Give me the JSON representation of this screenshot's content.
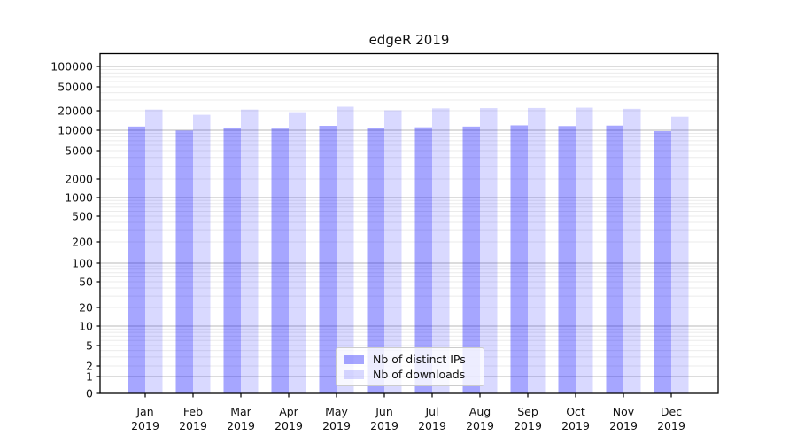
{
  "chart_data": {
    "type": "bar",
    "title": "edgeR 2019",
    "x_categories": [
      {
        "label": "Jan",
        "sublabel": "2019"
      },
      {
        "label": "Feb",
        "sublabel": "2019"
      },
      {
        "label": "Mar",
        "sublabel": "2019"
      },
      {
        "label": "Apr",
        "sublabel": "2019"
      },
      {
        "label": "May",
        "sublabel": "2019"
      },
      {
        "label": "Jun",
        "sublabel": "2019"
      },
      {
        "label": "Jul",
        "sublabel": "2019"
      },
      {
        "label": "Aug",
        "sublabel": "2019"
      },
      {
        "label": "Sep",
        "sublabel": "2019"
      },
      {
        "label": "Oct",
        "sublabel": "2019"
      },
      {
        "label": "Nov",
        "sublabel": "2019"
      },
      {
        "label": "Dec",
        "sublabel": "2019"
      }
    ],
    "series": [
      {
        "name": "Nb of distinct IPs",
        "color": "rgba(0,0,255,0.35)",
        "values": [
          11400,
          9900,
          11000,
          10600,
          11700,
          10700,
          11100,
          11400,
          11900,
          11600,
          11800,
          9700
        ]
      },
      {
        "name": "Nb of downloads",
        "color": "rgba(0,0,255,0.15)",
        "values": [
          20900,
          17300,
          20900,
          19000,
          23300,
          20300,
          21900,
          22100,
          22200,
          22500,
          21500,
          16200
        ]
      }
    ],
    "y_axis": {
      "scale": "symlog",
      "ticks": [
        100000,
        50000,
        20000,
        10000,
        5000,
        2000,
        1000,
        500,
        200,
        100,
        50,
        20,
        10,
        5,
        2,
        1,
        0
      ]
    },
    "legend_position": "lower center",
    "grid": true
  },
  "colors": {
    "bar_dark": "rgba(0,0,255,0.35)",
    "bar_light": "rgba(0,0,255,0.15)",
    "grid_major": "#b9b9b9",
    "grid_minor": "#ebebeb",
    "spine": "#000000"
  }
}
